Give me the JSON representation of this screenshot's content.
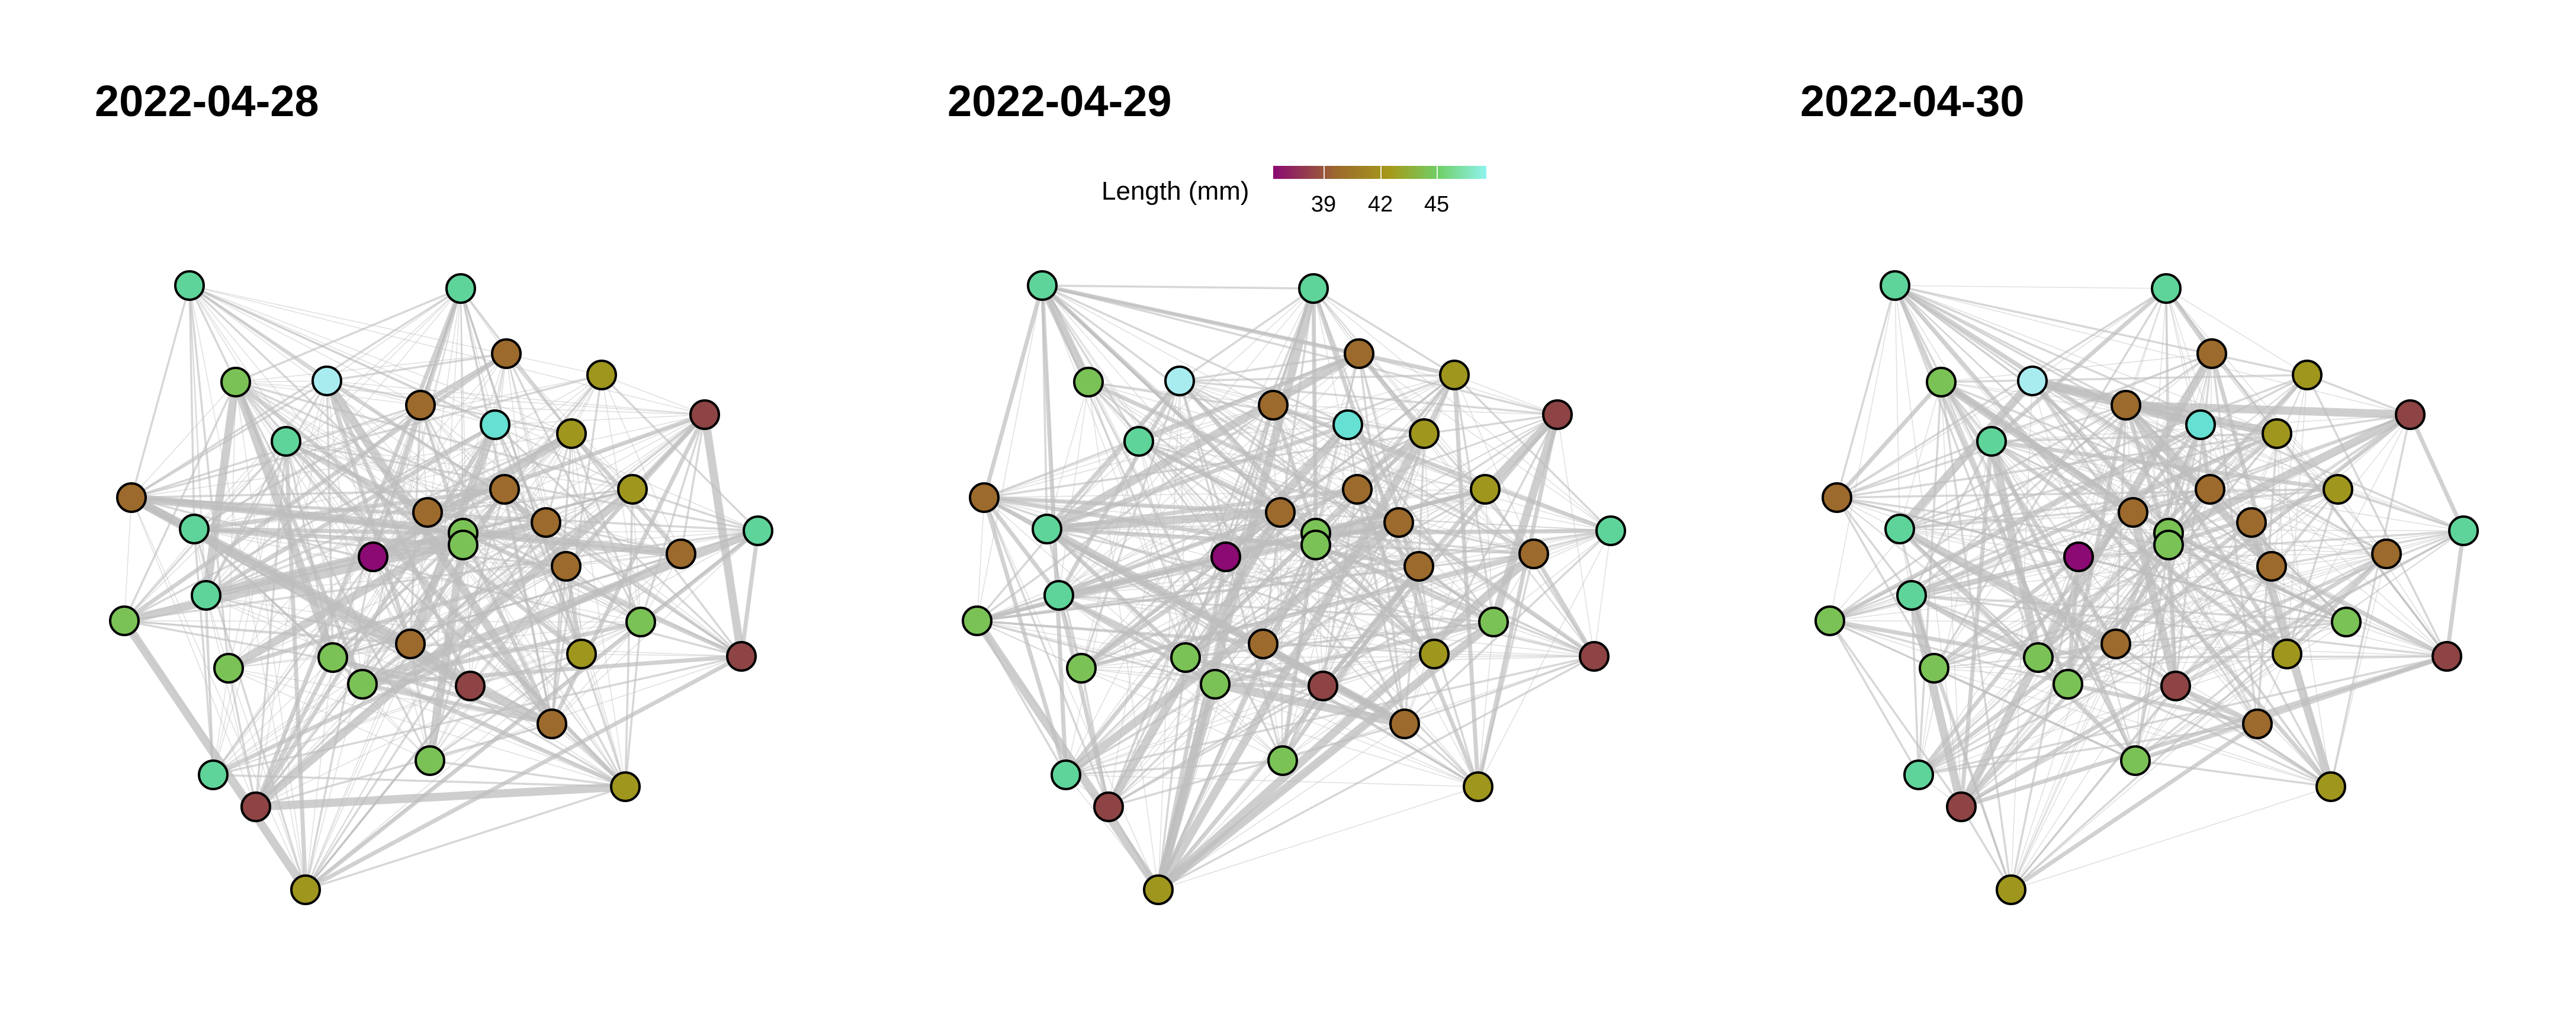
{
  "panels": [
    {
      "title": "2022-04-28"
    },
    {
      "title": "2022-04-29"
    },
    {
      "title": "2022-04-30"
    }
  ],
  "legend": {
    "title": "Length (mm)",
    "ticks": [
      "39",
      "42",
      "45"
    ],
    "gradient": [
      "#8b0a73",
      "#9c6a2c",
      "#a59a1a",
      "#6fd06a",
      "#8ff3ee"
    ]
  },
  "colors": {
    "magenta": "#8b0a73",
    "red_brown": "#8e4444",
    "brown": "#9c6a2c",
    "olive": "#9f961e",
    "green": "#7bc256",
    "mint": "#5fd49a",
    "cyan": "#65e0d2",
    "light_cyan": "#a8ecf0",
    "edge": "#bdbdbd",
    "node_stroke": "#000000"
  }
}
